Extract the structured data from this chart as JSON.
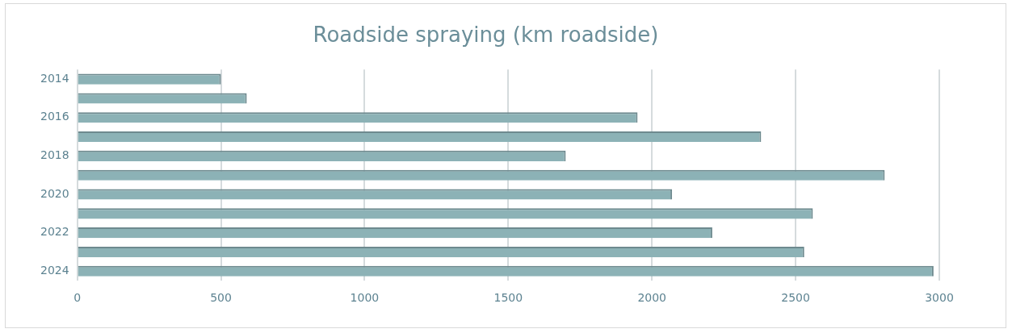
{
  "chart_data": {
    "type": "bar",
    "orientation": "horizontal",
    "title": "Roadside spraying (km roadside)",
    "categories": [
      "2014",
      null,
      "2016",
      null,
      "2018",
      null,
      "2020",
      null,
      "2022",
      null,
      "2024"
    ],
    "values": [
      500,
      590,
      1950,
      2380,
      1700,
      2810,
      2070,
      2560,
      2210,
      2530,
      2980
    ],
    "color": "#8cb2b6",
    "xlim": [
      0,
      3000
    ],
    "xticks": [
      0,
      500,
      1000,
      1500,
      2000,
      2500,
      3000
    ],
    "grid": "x",
    "legend": false
  }
}
